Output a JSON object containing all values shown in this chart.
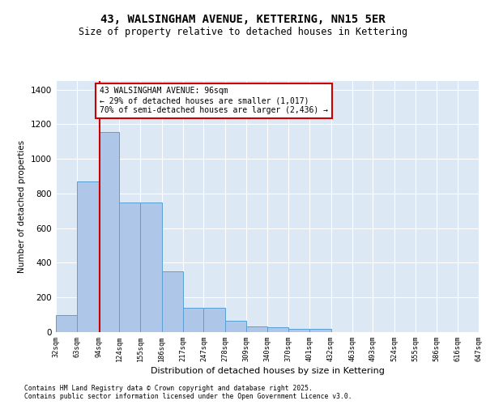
{
  "title": "43, WALSINGHAM AVENUE, KETTERING, NN15 5ER",
  "subtitle": "Size of property relative to detached houses in Kettering",
  "xlabel": "Distribution of detached houses by size in Kettering",
  "ylabel": "Number of detached properties",
  "footnote1": "Contains HM Land Registry data © Crown copyright and database right 2025.",
  "footnote2": "Contains public sector information licensed under the Open Government Licence v3.0.",
  "property_size": 96,
  "property_label": "43 WALSINGHAM AVENUE: 96sqm",
  "annotation_line1": "← 29% of detached houses are smaller (1,017)",
  "annotation_line2": "70% of semi-detached houses are larger (2,436) →",
  "bar_edges": [
    32,
    63,
    94,
    124,
    155,
    186,
    217,
    247,
    278,
    309,
    340,
    370,
    401,
    432,
    463,
    493,
    524,
    555,
    586,
    616,
    647
  ],
  "bar_heights": [
    100,
    870,
    1155,
    750,
    750,
    350,
    140,
    140,
    65,
    35,
    30,
    20,
    20,
    0,
    0,
    0,
    0,
    0,
    0,
    0
  ],
  "bar_color": "#aec6e8",
  "bar_edge_color": "#5a9fd4",
  "red_line_color": "#cc0000",
  "annotation_box_color": "#cc0000",
  "background_color": "#dde8f5",
  "ylim": [
    0,
    1450
  ],
  "xlim": [
    32,
    647
  ]
}
